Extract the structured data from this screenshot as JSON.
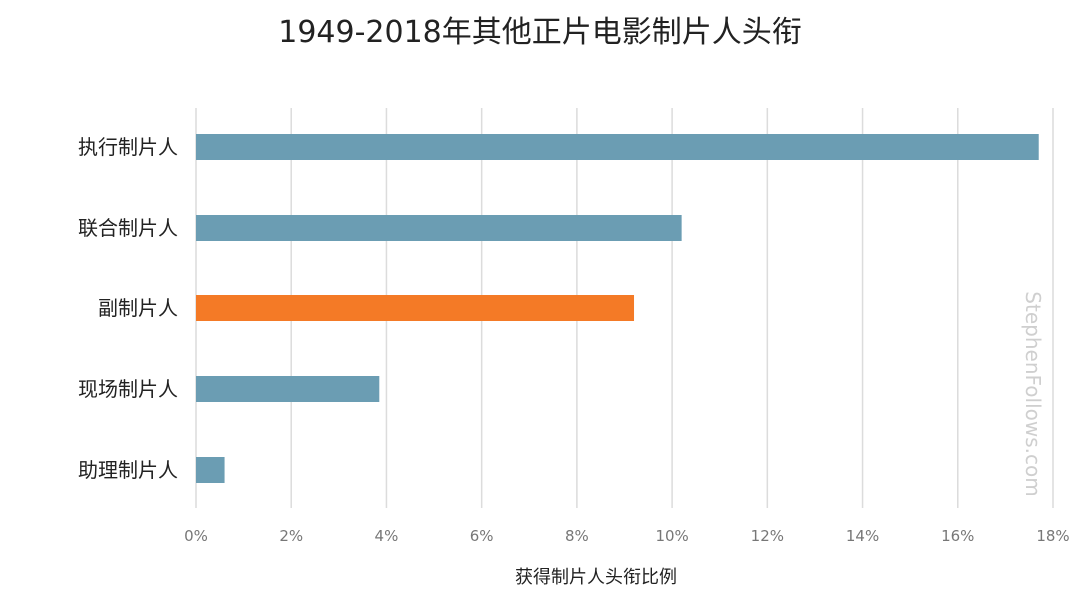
{
  "chart_data": {
    "type": "bar",
    "orientation": "horizontal",
    "title": "1949-2018年其他正片电影制片人头衔",
    "xlabel": "获得制片人头衔比例",
    "ylabel": "",
    "xlim": [
      0,
      18
    ],
    "x_ticks": [
      "0%",
      "2%",
      "4%",
      "6%",
      "8%",
      "10%",
      "12%",
      "14%",
      "16%",
      "18%"
    ],
    "x_tick_values": [
      0,
      2,
      4,
      6,
      8,
      10,
      12,
      14,
      16,
      18
    ],
    "grid": true,
    "categories": [
      "执行制片人",
      "联合制片人",
      "副制片人",
      "现场制片人",
      "助理制片人"
    ],
    "values": [
      17.7,
      10.2,
      9.2,
      3.85,
      0.6
    ],
    "bar_colors": [
      "#6b9db3",
      "#6b9db3",
      "#f47a26",
      "#6b9db3",
      "#6b9db3"
    ],
    "watermark": "StephenFollows.com"
  },
  "colors": {
    "bar_default": "#6b9db3",
    "bar_highlight": "#f47a26",
    "grid": "#dcdcdc",
    "text": "#222222",
    "tick_text": "#777777",
    "watermark": "#cfcfcf"
  }
}
